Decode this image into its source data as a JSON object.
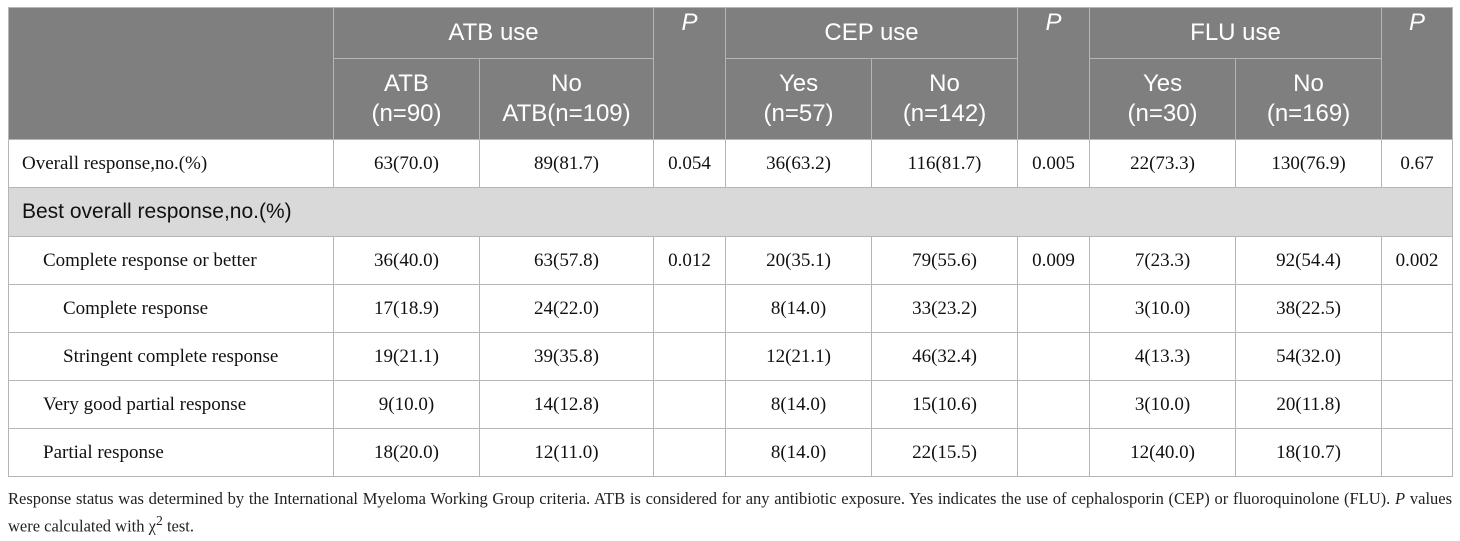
{
  "table": {
    "groups": [
      "ATB use",
      "CEP use",
      "FLU use"
    ],
    "p_label": "P",
    "subheaders": [
      [
        "ATB",
        "(n=90)"
      ],
      [
        "No",
        "ATB(n=109)"
      ],
      [
        "Yes",
        "(n=57)"
      ],
      [
        "No",
        "(n=142)"
      ],
      [
        "Yes",
        "(n=30)"
      ],
      [
        "No",
        "(n=169)"
      ]
    ],
    "overall": {
      "label": "Overall response,no.(%)",
      "cells": [
        "63(70.0)",
        "89(81.7)",
        "0.054",
        "36(63.2)",
        "116(81.7)",
        "0.005",
        "22(73.3)",
        "130(76.9)",
        "0.67"
      ]
    },
    "section_label": "Best overall response,no.(%)",
    "rows": [
      {
        "label": "Complete response or better",
        "indent": 1,
        "cells": [
          "36(40.0)",
          "63(57.8)",
          "0.012",
          "20(35.1)",
          "79(55.6)",
          "0.009",
          "7(23.3)",
          "92(54.4)",
          "0.002"
        ]
      },
      {
        "label": "Complete response",
        "indent": 2,
        "cells": [
          "17(18.9)",
          "24(22.0)",
          "",
          "8(14.0)",
          "33(23.2)",
          "",
          "3(10.0)",
          "38(22.5)",
          ""
        ]
      },
      {
        "label": "Stringent complete response",
        "indent": 2,
        "cells": [
          "19(21.1)",
          "39(35.8)",
          "",
          "12(21.1)",
          "46(32.4)",
          "",
          "4(13.3)",
          "54(32.0)",
          ""
        ]
      },
      {
        "label": "Very good partial response",
        "indent": 1,
        "cells": [
          "9(10.0)",
          "14(12.8)",
          "",
          "8(14.0)",
          "15(10.6)",
          "",
          "3(10.0)",
          "20(11.8)",
          ""
        ]
      },
      {
        "label": "Partial response",
        "indent": 1,
        "cells": [
          "18(20.0)",
          "12(11.0)",
          "",
          "8(14.0)",
          "22(15.5)",
          "",
          "12(40.0)",
          "18(10.7)",
          ""
        ]
      }
    ]
  },
  "footnote": {
    "part1": "Response status was determined by the International Myeloma Working Group criteria. ATB is considered for any antibiotic exposure. Yes indicates the use of cephalosporin (CEP) or fluoroquinolone (FLU).",
    "p_symbol": "P",
    "part2": "values were calculated with χ",
    "superscript": "2",
    "part3": "test."
  }
}
